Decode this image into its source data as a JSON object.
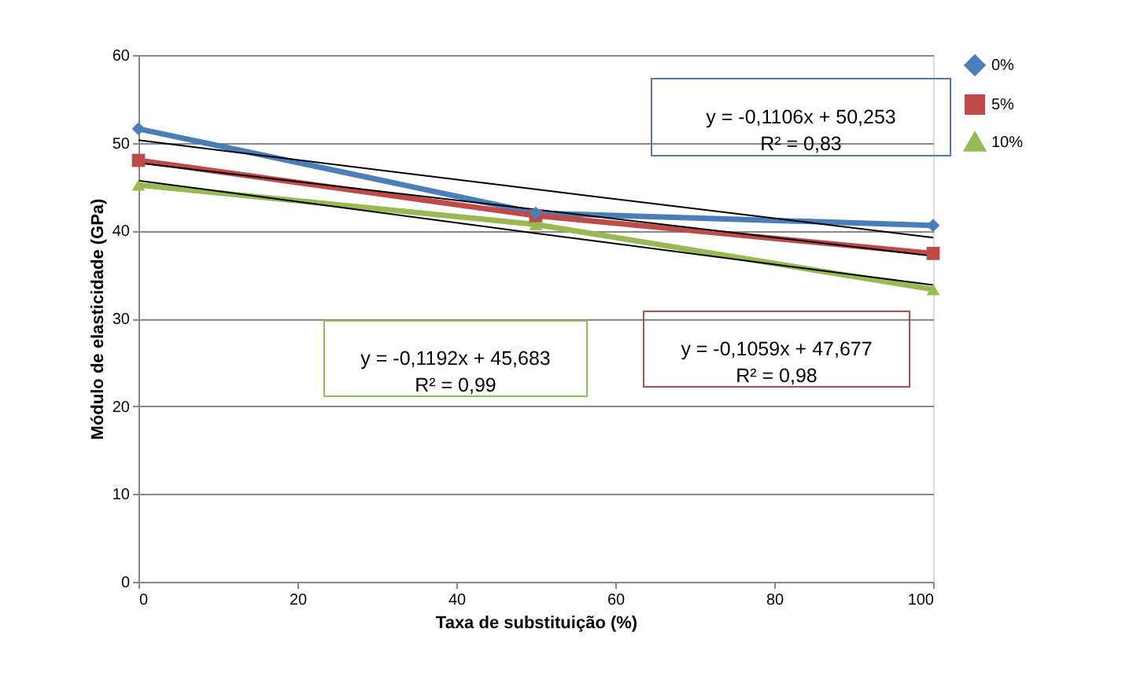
{
  "chart_data": {
    "type": "line",
    "xlabel": "Taxa de substituição (%)",
    "ylabel": "Módulo de elasticidade  (GPa)",
    "x": [
      0,
      50,
      100
    ],
    "series": [
      {
        "name": "0%",
        "color": "#4a7ebb",
        "marker": "diamond",
        "values": [
          51.6,
          42.0,
          40.6
        ]
      },
      {
        "name": "5%",
        "color": "#be4b48",
        "marker": "square",
        "values": [
          48.0,
          41.7,
          37.4
        ]
      },
      {
        "name": "10%",
        "color": "#98b954",
        "marker": "triangle",
        "values": [
          45.2,
          40.7,
          33.3
        ]
      },
      {
        "type": "line",
        "color": "#000000",
        "values": [
          50.3,
          44.7,
          39.2
        ]
      },
      {
        "type": "line",
        "color": "#000000",
        "values": [
          47.7,
          42.4,
          37.1
        ]
      },
      {
        "type": "line",
        "color": "#000000",
        "values": [
          45.7,
          39.7,
          33.8
        ]
      }
    ],
    "annotations": [
      "y = -0,1106x + 50,253\nR² = 0,83",
      "y = -0,1192x + 45,683\nR² = 0,99",
      "y = -0,1059x + 47,677\nR² = 0,98"
    ],
    "xlim": [
      0,
      100
    ],
    "xticks": [
      0,
      20,
      40,
      60,
      80,
      100
    ],
    "ylim": [
      0,
      60
    ],
    "yticks": [
      0,
      10,
      20,
      30,
      40,
      50,
      60
    ],
    "grid": "y",
    "legend": "right",
    "line_style": "solid"
  }
}
